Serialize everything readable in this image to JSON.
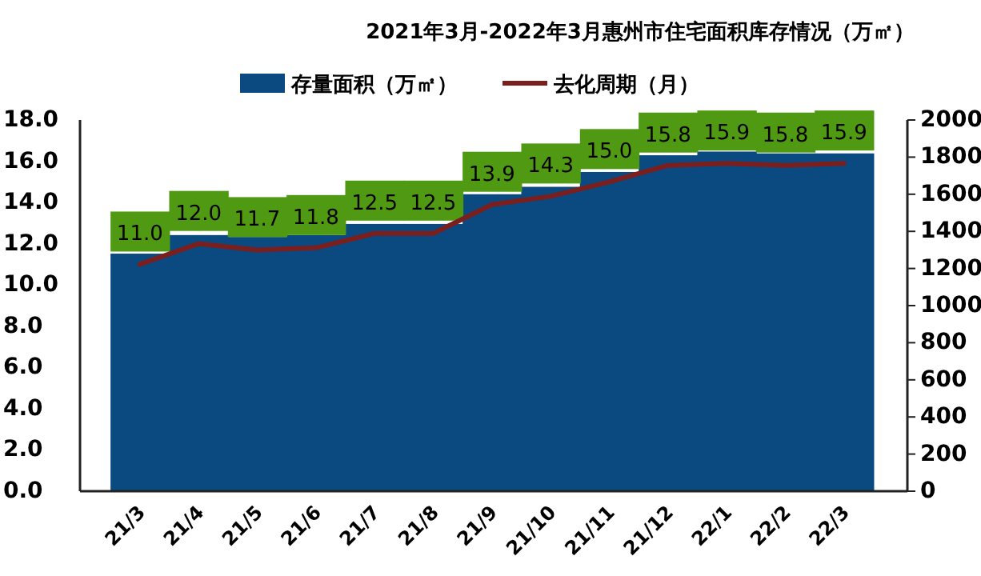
{
  "chart_data": {
    "type": "bar",
    "title": "2021年3月-2022年3月惠州市住宅面积库存情况（万㎡）",
    "categories": [
      "21/3",
      "21/4",
      "21/5",
      "21/6",
      "21/7",
      "21/8",
      "21/9",
      "21/10",
      "21/11",
      "21/12",
      "22/1",
      "22/2",
      "22/3"
    ],
    "series": [
      {
        "name": "存量面积（万㎡）",
        "axis": "y2",
        "color": "#0b4a80",
        "values": [
          1280,
          1380,
          1370,
          1380,
          1440,
          1440,
          1600,
          1640,
          1720,
          1810,
          1830,
          1820,
          1820
        ]
      },
      {
        "name": "去化周期（月）",
        "type": "line",
        "color": "#7b1e1e",
        "values": [
          11.0,
          12.0,
          11.7,
          11.8,
          12.5,
          12.5,
          13.9,
          14.3,
          15.0,
          15.8,
          15.9,
          15.8,
          15.9
        ],
        "value_labels": [
          "11.0",
          "12.0",
          "11.7",
          "11.8",
          "12.5",
          "12.5",
          "13.9",
          "14.3",
          "15.0",
          "15.8",
          "15.9",
          "15.8",
          "15.9"
        ]
      }
    ],
    "ylim": [
      0,
      18
    ],
    "yticks": [
      {
        "value": 0,
        "label": "0.0"
      },
      {
        "value": 2,
        "label": "2.0"
      },
      {
        "value": 4,
        "label": "4.0"
      },
      {
        "value": 6,
        "label": "6.0"
      },
      {
        "value": 8,
        "label": "8.0"
      },
      {
        "value": 10,
        "label": "10.0"
      },
      {
        "value": 12,
        "label": "12.0"
      },
      {
        "value": 14,
        "label": "14.0"
      },
      {
        "value": 16,
        "label": "16.0"
      },
      {
        "value": 18,
        "label": "18.0"
      }
    ],
    "y2lim": [
      0,
      2000
    ],
    "y2ticks": [
      0,
      200,
      400,
      600,
      800,
      1000,
      1200,
      1400,
      1600,
      1800,
      2000
    ],
    "legend": "top",
    "grid": false,
    "marker": "none"
  }
}
